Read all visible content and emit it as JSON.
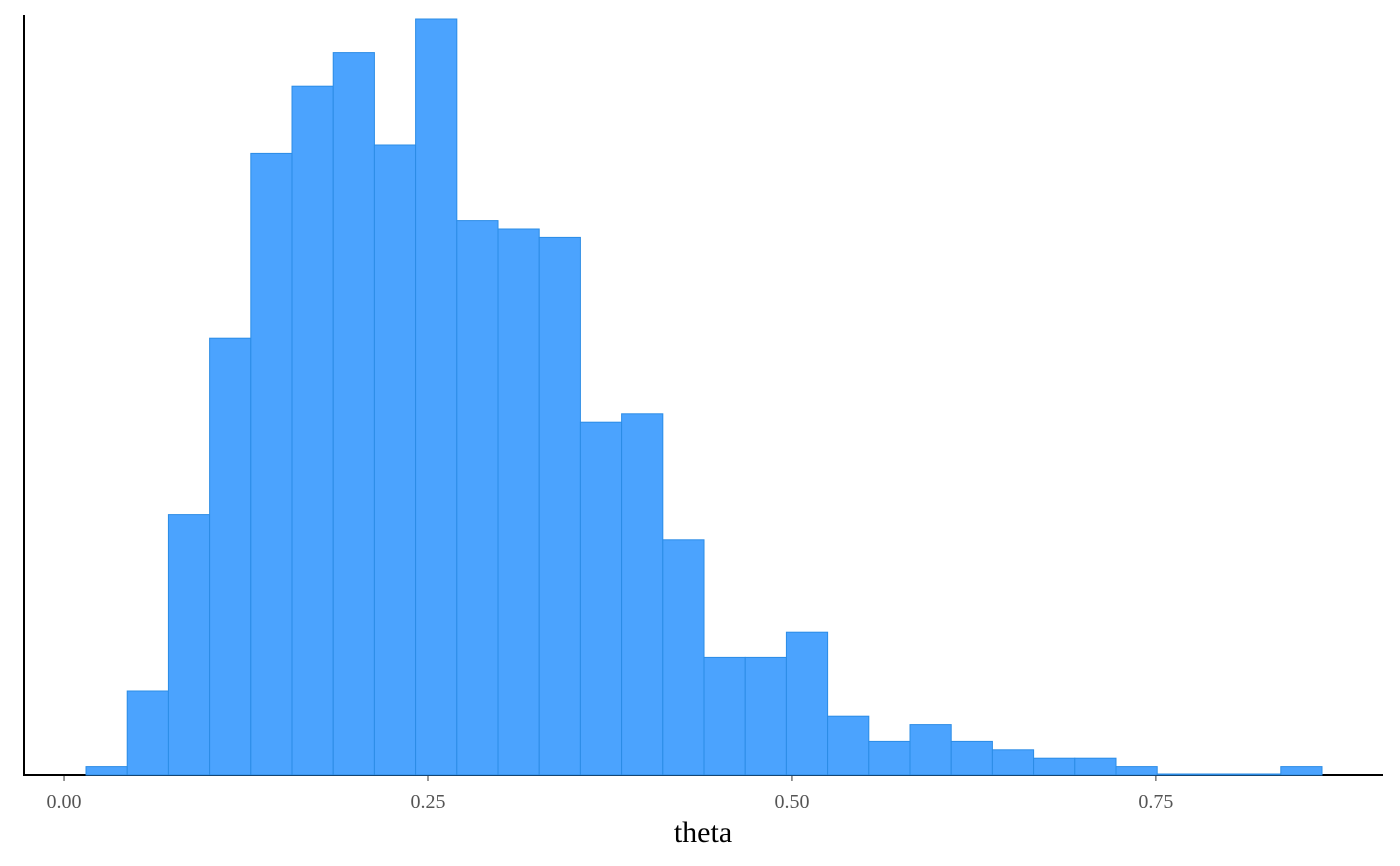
{
  "chart_data": {
    "type": "histogram",
    "x_label": "theta",
    "bins": [
      0.0151,
      0.0434,
      0.0717,
      0.1,
      0.1283,
      0.1566,
      0.1849,
      0.2132,
      0.2415,
      0.2698,
      0.2981,
      0.3264,
      0.3547,
      0.383,
      0.4113,
      0.4396,
      0.4679,
      0.4962,
      0.5245,
      0.5528,
      0.5811,
      0.6094,
      0.6377,
      0.666,
      0.6943,
      0.7226,
      0.7509,
      0.7792,
      0.8075,
      0.8358,
      0.8641
    ],
    "values": [
      1,
      10,
      31,
      52,
      74,
      82,
      86,
      75,
      90,
      66,
      65,
      64,
      42,
      43,
      28,
      14,
      14,
      17,
      7,
      4,
      6,
      4,
      3,
      2,
      2,
      1,
      0,
      0,
      0,
      1
    ],
    "color": "#4ba3fe",
    "edge_color": "#2b8ce6",
    "xlim": [
      -0.0275,
      0.906
    ],
    "ylim": [
      0,
      90
    ],
    "xticks": [
      {
        "value": 0,
        "label": "0.00"
      },
      {
        "value": 0.25,
        "label": "0.25"
      },
      {
        "value": 0.5,
        "label": "0.50"
      },
      {
        "value": 0.75,
        "label": "0.75"
      }
    ]
  }
}
